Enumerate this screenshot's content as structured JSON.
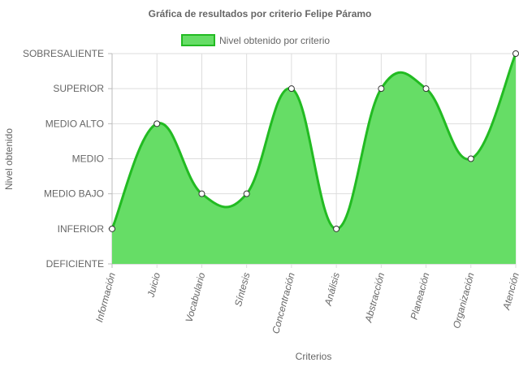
{
  "chart_data": {
    "type": "area",
    "title": "Gráfica de resultados por criterio Felipe Páramo",
    "xlabel": "Criterios",
    "ylabel": "Nivel obtenido",
    "categories": [
      "Información",
      "Juicio",
      "Vocabulario",
      "Síntesis",
      "Concentración",
      "Análisis",
      "Abstracción",
      "Planeación",
      "Organización",
      "Atención"
    ],
    "y_levels": [
      "DEFICIENTE",
      "INFERIOR",
      "MEDIO BAJO",
      "MEDIO",
      "MEDIO ALTO",
      "SUPERIOR",
      "SOBRESALIENTE"
    ],
    "ylim": [
      0,
      6
    ],
    "series": [
      {
        "name": "Nivel obtenido por criterio",
        "values": [
          1,
          4,
          2,
          2,
          5,
          1,
          5,
          5,
          3,
          6
        ]
      }
    ],
    "legend": "top",
    "grid": true,
    "colors": {
      "fill": "#66dd66",
      "line": "#22bb22",
      "grid": "#dddddd",
      "axis": "#bbbbbb",
      "point_fill": "#ffffff",
      "point_stroke": "#333333",
      "text": "#666666"
    }
  }
}
